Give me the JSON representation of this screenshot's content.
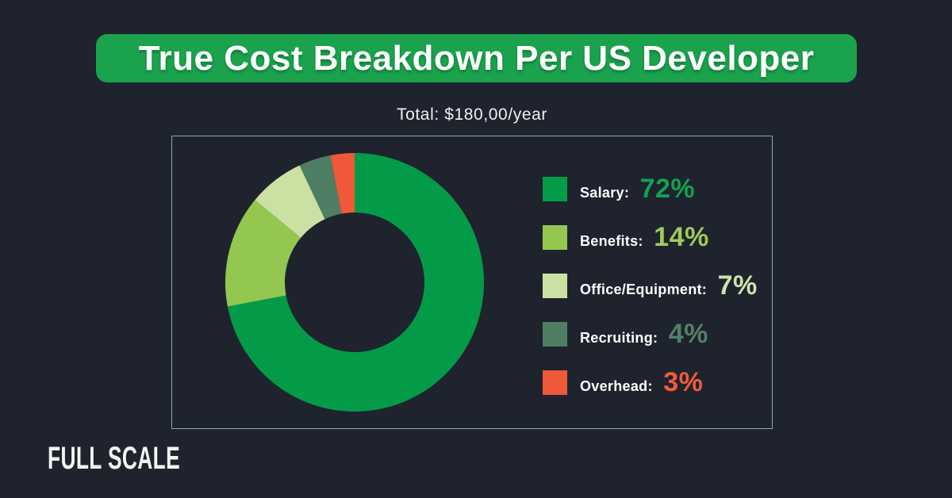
{
  "page": {
    "background_color": "#1e232e",
    "accent_green": "#1aa24c"
  },
  "header": {
    "title": "True Cost Breakdown Per US Developer",
    "banner_color": "#1aa24c"
  },
  "subtitle": {
    "text": "Total: $180,00/year"
  },
  "chart_data": {
    "type": "pie",
    "variant": "donut",
    "title": "True Cost Breakdown Per US Developer",
    "total_label": "Total: $180,00/year",
    "categories": [
      "Salary",
      "Benefits",
      "Office/Equipment",
      "Recruiting",
      "Overhead"
    ],
    "values": [
      72,
      14,
      7,
      4,
      3
    ],
    "unit": "%",
    "colors": [
      "#049b48",
      "#94c750",
      "#cbe1a3",
      "#4e7e63",
      "#f0583a"
    ],
    "start_angle_deg": 0,
    "direction": "clockwise",
    "inner_radius_ratio": 0.54,
    "hole_color": "#1e232e",
    "legend_position": "right"
  },
  "legend": {
    "items": [
      {
        "label": "Salary:",
        "value": "72%",
        "color": "#049b48",
        "value_color": "#12a24f"
      },
      {
        "label": "Benefits:",
        "value": "14%",
        "color": "#94c750",
        "value_color": "#9fcb58"
      },
      {
        "label": "Office/Equipment:",
        "value": "7%",
        "color": "#cbe1a3",
        "value_color": "#cfe3aa"
      },
      {
        "label": "Recruiting:",
        "value": "4%",
        "color": "#4e7e63",
        "value_color": "#548165"
      },
      {
        "label": "Overhead:",
        "value": "3%",
        "color": "#f0583a",
        "value_color": "#f25b3c"
      }
    ]
  },
  "frame": {
    "border_color": "#8fac92"
  },
  "footer": {
    "logo_text": "FULL SCALE"
  }
}
